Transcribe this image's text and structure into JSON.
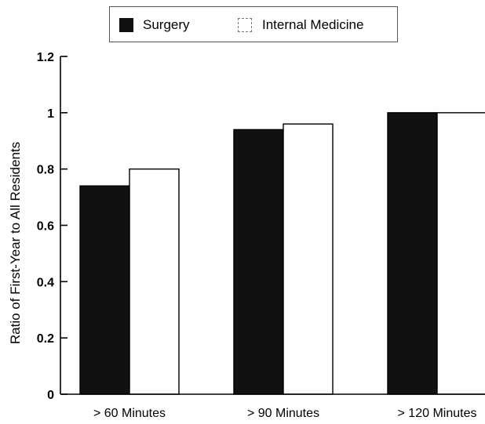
{
  "chart_data": {
    "type": "bar",
    "categories": [
      "> 60 Minutes",
      "> 90 Minutes",
      "> 120 Minutes"
    ],
    "series": [
      {
        "name": "Surgery",
        "values": [
          0.74,
          0.94,
          1.0
        ],
        "color": "#111111"
      },
      {
        "name": "Internal Medicine",
        "values": [
          0.8,
          0.96,
          1.0
        ],
        "color": "#ffffff"
      }
    ],
    "ylabel": "Ratio of First-Year to All Residents",
    "ylim": [
      0,
      1.2
    ],
    "yticks": [
      "0",
      "0.2",
      "0.4",
      "0.6",
      "0.8",
      "1",
      "1.2"
    ],
    "grid": false,
    "legend_position": "top-center"
  }
}
